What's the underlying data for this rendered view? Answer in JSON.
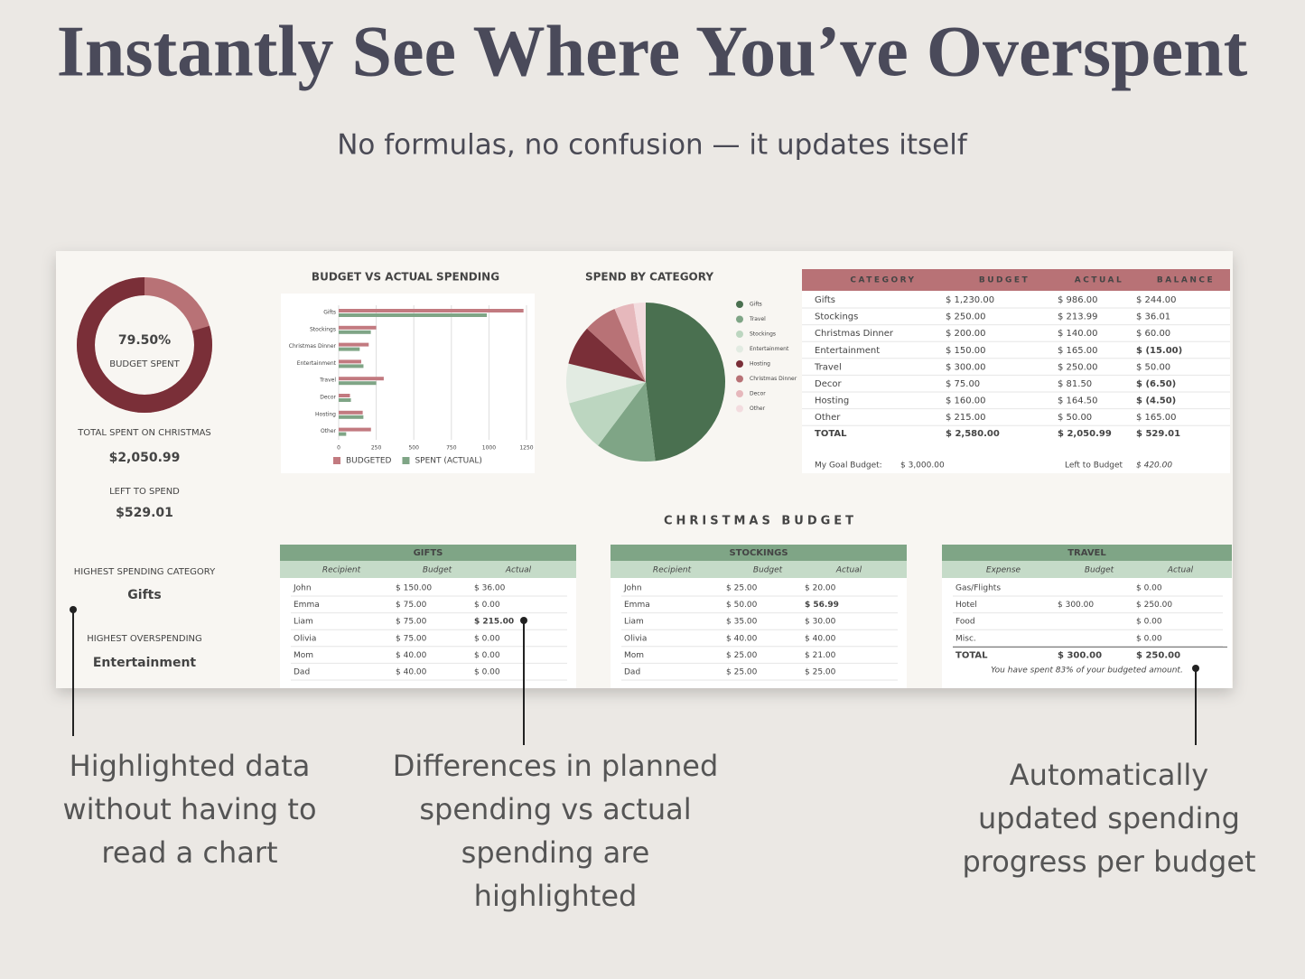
{
  "header": {
    "title": "Instantly See Where You’ve Overspent",
    "subtitle": "No formulas, no confusion — it updates itself"
  },
  "dashboard": {
    "donut": {
      "value": 79.5,
      "label": "79.50%",
      "caption": "BUDGET SPENT",
      "color": "#7a2f38",
      "track_color": "#b87276"
    },
    "stats": [
      {
        "label": "TOTAL SPENT ON CHRISTMAS",
        "value": "$2,050.99"
      },
      {
        "label": "LEFT TO SPEND",
        "value": "$529.01"
      },
      {
        "label": "HIGHEST SPENDING CATEGORY",
        "value": "Gifts"
      },
      {
        "label": "HIGHEST OVERSPENDING",
        "value": "Entertainment"
      }
    ],
    "summary_table": {
      "headers": [
        "CATEGORY",
        "BUDGET",
        "ACTUAL",
        "BALANCE"
      ],
      "rows": [
        [
          "Gifts",
          "$ 1,230.00",
          "$ 986.00",
          "$ 244.00"
        ],
        [
          "Stockings",
          "$ 250.00",
          "$ 213.99",
          "$ 36.01"
        ],
        [
          "Christmas Dinner",
          "$ 200.00",
          "$ 140.00",
          "$ 60.00"
        ],
        [
          "Entertainment",
          "$ 150.00",
          "$ 165.00",
          "$ (15.00)"
        ],
        [
          "Travel",
          "$ 300.00",
          "$ 250.00",
          "$ 50.00"
        ],
        [
          "Decor",
          "$ 75.00",
          "$ 81.50",
          "$ (6.50)"
        ],
        [
          "Hosting",
          "$ 160.00",
          "$ 164.50",
          "$ (4.50)"
        ],
        [
          "Other",
          "$ 215.00",
          "$ 50.00",
          "$ 165.00"
        ]
      ],
      "total": [
        "TOTAL",
        "$ 2,580.00",
        "$ 2,050.99",
        "$ 529.01"
      ],
      "highlight": [
        [
          3,
          3
        ],
        [
          5,
          3
        ],
        [
          6,
          3
        ]
      ],
      "goal_label": "My Goal Budget:",
      "goal": "$ 3,000.00",
      "left_label": "Left to Budget",
      "left": "$ 420.00"
    },
    "section_title": "CHRISTMAS BUDGET",
    "tables": [
      {
        "title": "GIFTS",
        "headers": [
          "Recipient",
          "Budget",
          "Actual"
        ],
        "rows": [
          [
            "John",
            "$ 150.00",
            "$ 36.00"
          ],
          [
            "Emma",
            "$ 75.00",
            "$ 0.00"
          ],
          [
            "Liam",
            "$ 75.00",
            "$ 215.00"
          ],
          [
            "Olivia",
            "$ 75.00",
            "$ 0.00"
          ],
          [
            "Mom",
            "$ 40.00",
            "$ 0.00"
          ],
          [
            "Dad",
            "$ 40.00",
            "$ 0.00"
          ]
        ],
        "highlight": [
          [
            2,
            2
          ]
        ]
      },
      {
        "title": "STOCKINGS",
        "headers": [
          "Recipient",
          "Budget",
          "Actual"
        ],
        "rows": [
          [
            "John",
            "$ 25.00",
            "$ 20.00"
          ],
          [
            "Emma",
            "$ 50.00",
            "$ 56.99"
          ],
          [
            "Liam",
            "$ 35.00",
            "$ 30.00"
          ],
          [
            "Olivia",
            "$ 40.00",
            "$ 40.00"
          ],
          [
            "Mom",
            "$ 25.00",
            "$ 21.00"
          ],
          [
            "Dad",
            "$ 25.00",
            "$ 25.00"
          ]
        ],
        "highlight": [
          [
            1,
            2
          ]
        ]
      },
      {
        "title": "TRAVEL",
        "headers": [
          "Expense",
          "Budget",
          "Actual"
        ],
        "rows": [
          [
            "Gas/Flights",
            null,
            "$ 0.00"
          ],
          [
            "Hotel",
            "$ 300.00",
            "$ 250.00"
          ],
          [
            "Food",
            null,
            "$ 0.00"
          ],
          [
            "Misc.",
            null,
            "$ 0.00"
          ]
        ],
        "total": [
          "TOTAL",
          "$ 300.00",
          "$ 250.00"
        ],
        "note": "You have spent 83% of your budgeted amount.",
        "highlight": []
      }
    ]
  },
  "chart_data": [
    {
      "type": "bar",
      "title": "BUDGET VS ACTUAL SPENDING",
      "categories": [
        "Gifts",
        "Stockings",
        "Christmas Dinner",
        "Entertainment",
        "Travel",
        "Decor",
        "Hosting",
        "Other"
      ],
      "series": [
        {
          "name": "BUDGETED",
          "color": "#c27a80",
          "values": [
            1230,
            250,
            200,
            150,
            300,
            75,
            160,
            215
          ]
        },
        {
          "name": "SPENT (ACTUAL)",
          "color": "#7fa586",
          "values": [
            986,
            213.99,
            140,
            165,
            250,
            81.5,
            164.5,
            50
          ]
        }
      ],
      "xlim": [
        0,
        1250
      ],
      "xticks": [
        0,
        250,
        500,
        750,
        1000,
        1250
      ],
      "grid": true
    },
    {
      "type": "pie",
      "title": "SPEND BY CATEGORY",
      "categories": [
        "Gifts",
        "Travel",
        "Stockings",
        "Entertainment",
        "Hosting",
        "Christmas Dinner",
        "Decor",
        "Other"
      ],
      "values": [
        986,
        250,
        213.99,
        165,
        164.5,
        140,
        81.5,
        50
      ],
      "colors": [
        "#4a7050",
        "#7fa586",
        "#bcd6c0",
        "#e2ebe2",
        "#7a2f38",
        "#b87276",
        "#e6b8bc",
        "#f3dcdf"
      ]
    }
  ],
  "annotations": [
    {
      "lines": [
        "Highlighted data",
        "without having to",
        "read a chart"
      ]
    },
    {
      "lines": [
        "Differences in planned",
        "spending vs actual",
        "spending are",
        "highlighted"
      ]
    },
    {
      "lines": [
        "Automatically",
        "updated spending",
        "progress per budget"
      ]
    }
  ]
}
